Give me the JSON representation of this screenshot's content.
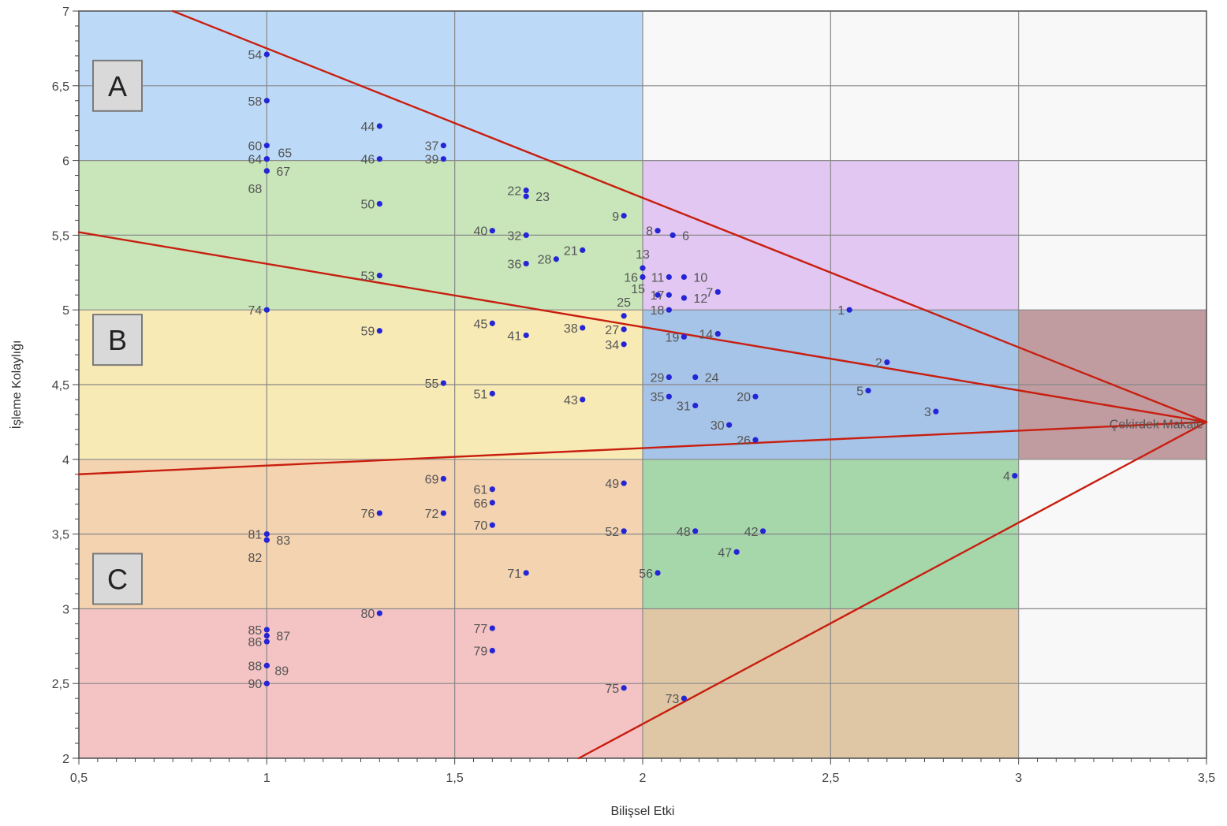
{
  "chart_data": {
    "type": "scatter",
    "xlabel": "Bilişsel Etki",
    "ylabel": "İşleme Kolaylığı",
    "xlim": [
      0.5,
      3.5
    ],
    "ylim": [
      2,
      7
    ],
    "x_ticks": [
      0.5,
      1,
      1.5,
      2,
      2.5,
      3,
      3.5
    ],
    "x_tick_labels": [
      "0,5",
      "1",
      "1,5",
      "2",
      "2,5",
      "3",
      "3,5"
    ],
    "y_ticks": [
      2,
      2.5,
      3,
      3.5,
      4,
      4.5,
      5,
      5.5,
      6,
      6.5,
      7
    ],
    "y_tick_labels": [
      "2",
      "2,5",
      "3",
      "3,5",
      "4",
      "4,5",
      "5",
      "5,5",
      "6",
      "6,5",
      "7"
    ],
    "grid": true,
    "regions": [
      {
        "x": [
          0.5,
          2
        ],
        "y": [
          6,
          7
        ],
        "color": "#bcdaf7"
      },
      {
        "x": [
          0.5,
          2
        ],
        "y": [
          5,
          6
        ],
        "color": "#c8e6b9"
      },
      {
        "x": [
          0.5,
          2
        ],
        "y": [
          4,
          5
        ],
        "color": "#f8eab5"
      },
      {
        "x": [
          0.5,
          2
        ],
        "y": [
          3,
          4
        ],
        "color": "#f4d3b0"
      },
      {
        "x": [
          0.5,
          2
        ],
        "y": [
          2,
          3
        ],
        "color": "#f4c3c4"
      },
      {
        "x": [
          2,
          3
        ],
        "y": [
          5,
          6
        ],
        "color": "#e1c7f1"
      },
      {
        "x": [
          2,
          3
        ],
        "y": [
          4,
          5
        ],
        "color": "#a6c3e8"
      },
      {
        "x": [
          2,
          3
        ],
        "y": [
          3,
          4
        ],
        "color": "#a6d7ab"
      },
      {
        "x": [
          2,
          3
        ],
        "y": [
          2,
          3
        ],
        "color": "#dfc7a5"
      },
      {
        "x": [
          3,
          3.5
        ],
        "y": [
          4,
          5
        ],
        "color": "#c09b9f"
      },
      {
        "x": [
          2,
          3.5
        ],
        "y": [
          6,
          7
        ],
        "color": "#f8f8f8"
      },
      {
        "x": [
          3,
          3.5
        ],
        "y": [
          5,
          6
        ],
        "color": "#f8f8f8"
      },
      {
        "x": [
          3,
          3.5
        ],
        "y": [
          2,
          4
        ],
        "color": "#f8f8f8"
      }
    ],
    "zone_labels": [
      {
        "text": "A",
        "y": 6.5
      },
      {
        "text": "B",
        "y": 4.8
      },
      {
        "text": "C",
        "y": 3.2
      }
    ],
    "core_label": "Çekirdek Makale",
    "lines": [
      {
        "from": [
          0.75,
          7
        ],
        "to": [
          3.5,
          4.25
        ]
      },
      {
        "from": [
          0.5,
          5.52
        ],
        "to": [
          3.5,
          4.25
        ]
      },
      {
        "from": [
          0.5,
          3.9
        ],
        "to": [
          3.5,
          4.25
        ]
      },
      {
        "from": [
          1.83,
          2
        ],
        "to": [
          3.5,
          4.25
        ]
      }
    ],
    "line_color": "#c81e0f",
    "point_color": "#2525d6",
    "points": [
      {
        "id": "1",
        "x": 2.55,
        "y": 5.0,
        "lp": "l"
      },
      {
        "id": "2",
        "x": 2.65,
        "y": 4.65,
        "lp": "l"
      },
      {
        "id": "3",
        "x": 2.78,
        "y": 4.32,
        "lp": "l"
      },
      {
        "id": "4",
        "x": 2.99,
        "y": 3.89,
        "lp": "l"
      },
      {
        "id": "5",
        "x": 2.6,
        "y": 4.46,
        "lp": "l"
      },
      {
        "id": "6",
        "x": 2.08,
        "y": 5.5,
        "lp": "r"
      },
      {
        "id": "7",
        "x": 2.2,
        "y": 5.12,
        "lp": "l"
      },
      {
        "id": "8",
        "x": 2.04,
        "y": 5.53,
        "lp": "l"
      },
      {
        "id": "9",
        "x": 1.95,
        "y": 5.63,
        "lp": "l"
      },
      {
        "id": "10",
        "x": 2.11,
        "y": 5.22,
        "lp": "r"
      },
      {
        "id": "11",
        "x": 2.07,
        "y": 5.22,
        "lp": "l"
      },
      {
        "id": "12",
        "x": 2.11,
        "y": 5.08,
        "lp": "r"
      },
      {
        "id": "13",
        "x": 2.0,
        "y": 5.28,
        "lp": "a"
      },
      {
        "id": "14",
        "x": 2.2,
        "y": 4.84,
        "lp": "l"
      },
      {
        "id": "15",
        "x": 2.04,
        "y": 5.1,
        "lp": "m"
      },
      {
        "id": "16",
        "x": 2.0,
        "y": 5.22,
        "lp": "l"
      },
      {
        "id": "17",
        "x": 2.07,
        "y": 5.1,
        "lp": "l"
      },
      {
        "id": "18",
        "x": 2.07,
        "y": 5.0,
        "lp": "l"
      },
      {
        "id": "19",
        "x": 2.11,
        "y": 4.82,
        "lp": "l"
      },
      {
        "id": "20",
        "x": 2.3,
        "y": 4.42,
        "lp": "l"
      },
      {
        "id": "21",
        "x": 1.84,
        "y": 5.4,
        "lp": "l"
      },
      {
        "id": "22",
        "x": 1.69,
        "y": 5.8,
        "lp": "l"
      },
      {
        "id": "23",
        "x": 1.69,
        "y": 5.76,
        "lp": "r"
      },
      {
        "id": "24",
        "x": 2.14,
        "y": 4.55,
        "lp": "r"
      },
      {
        "id": "25",
        "x": 1.95,
        "y": 4.96,
        "lp": "a"
      },
      {
        "id": "26",
        "x": 2.3,
        "y": 4.13,
        "lp": "l"
      },
      {
        "id": "27",
        "x": 1.95,
        "y": 4.87,
        "lp": "l"
      },
      {
        "id": "28",
        "x": 1.77,
        "y": 5.34,
        "lp": "l"
      },
      {
        "id": "29",
        "x": 2.07,
        "y": 4.55,
        "lp": "l"
      },
      {
        "id": "30",
        "x": 2.23,
        "y": 4.23,
        "lp": "l"
      },
      {
        "id": "31",
        "x": 2.14,
        "y": 4.36,
        "lp": "l"
      },
      {
        "id": "32",
        "x": 1.69,
        "y": 5.5,
        "lp": "l"
      },
      {
        "id": "34",
        "x": 1.95,
        "y": 4.77,
        "lp": "l"
      },
      {
        "id": "35",
        "x": 2.07,
        "y": 4.42,
        "lp": "l"
      },
      {
        "id": "36",
        "x": 1.69,
        "y": 5.31,
        "lp": "l"
      },
      {
        "id": "37",
        "x": 1.47,
        "y": 6.1,
        "lp": "l"
      },
      {
        "id": "38",
        "x": 1.84,
        "y": 4.88,
        "lp": "l"
      },
      {
        "id": "39",
        "x": 1.47,
        "y": 6.01,
        "lp": "l"
      },
      {
        "id": "40",
        "x": 1.6,
        "y": 5.53,
        "lp": "l"
      },
      {
        "id": "41",
        "x": 1.69,
        "y": 4.83,
        "lp": "l"
      },
      {
        "id": "42",
        "x": 2.32,
        "y": 3.52,
        "lp": "l"
      },
      {
        "id": "43",
        "x": 1.84,
        "y": 4.4,
        "lp": "l"
      },
      {
        "id": "44",
        "x": 1.3,
        "y": 6.23,
        "lp": "l"
      },
      {
        "id": "45",
        "x": 1.6,
        "y": 4.91,
        "lp": "l"
      },
      {
        "id": "46",
        "x": 1.3,
        "y": 6.01,
        "lp": "l"
      },
      {
        "id": "47",
        "x": 2.25,
        "y": 3.38,
        "lp": "l"
      },
      {
        "id": "48",
        "x": 2.14,
        "y": 3.52,
        "lp": "l"
      },
      {
        "id": "49",
        "x": 1.95,
        "y": 3.84,
        "lp": "l"
      },
      {
        "id": "50",
        "x": 1.3,
        "y": 5.71,
        "lp": "l"
      },
      {
        "id": "51",
        "x": 1.6,
        "y": 4.44,
        "lp": "l"
      },
      {
        "id": "52",
        "x": 1.95,
        "y": 3.52,
        "lp": "l"
      },
      {
        "id": "53",
        "x": 1.3,
        "y": 5.23,
        "lp": "l"
      },
      {
        "id": "54",
        "x": 1.0,
        "y": 6.71,
        "lp": "l"
      },
      {
        "id": "55",
        "x": 1.47,
        "y": 4.51,
        "lp": "l"
      },
      {
        "id": "56",
        "x": 2.04,
        "y": 3.24,
        "lp": "l"
      },
      {
        "id": "58",
        "x": 1.0,
        "y": 6.4,
        "lp": "l"
      },
      {
        "id": "59",
        "x": 1.3,
        "y": 4.86,
        "lp": "l"
      },
      {
        "id": "60",
        "x": 1.0,
        "y": 6.1,
        "lp": "l"
      },
      {
        "id": "61",
        "x": 1.6,
        "y": 3.8,
        "lp": "l"
      },
      {
        "id": "64",
        "x": 1.0,
        "y": 6.01,
        "lp": "l"
      },
      {
        "id": "65",
        "x": 1.0,
        "y": 6.01,
        "lp": "ar"
      },
      {
        "id": "66",
        "x": 1.6,
        "y": 3.71,
        "lp": "l"
      },
      {
        "id": "67",
        "x": 1.0,
        "y": 5.93,
        "lp": "r"
      },
      {
        "id": "68",
        "x": 1.0,
        "y": 5.93,
        "lp": "bl"
      },
      {
        "id": "69",
        "x": 1.47,
        "y": 3.87,
        "lp": "l"
      },
      {
        "id": "70",
        "x": 1.6,
        "y": 3.56,
        "lp": "l"
      },
      {
        "id": "71",
        "x": 1.69,
        "y": 3.24,
        "lp": "l"
      },
      {
        "id": "72",
        "x": 1.47,
        "y": 3.64,
        "lp": "l"
      },
      {
        "id": "73",
        "x": 2.11,
        "y": 2.4,
        "lp": "l"
      },
      {
        "id": "74",
        "x": 1.0,
        "y": 5.0,
        "lp": "l"
      },
      {
        "id": "75",
        "x": 1.95,
        "y": 2.47,
        "lp": "l"
      },
      {
        "id": "76",
        "x": 1.3,
        "y": 3.64,
        "lp": "l"
      },
      {
        "id": "77",
        "x": 1.6,
        "y": 2.87,
        "lp": "l"
      },
      {
        "id": "79",
        "x": 1.6,
        "y": 2.72,
        "lp": "l"
      },
      {
        "id": "80",
        "x": 1.3,
        "y": 2.97,
        "lp": "l"
      },
      {
        "id": "81",
        "x": 1.0,
        "y": 3.5,
        "lp": "l"
      },
      {
        "id": "82",
        "x": 1.0,
        "y": 3.46,
        "lp": "bl"
      },
      {
        "id": "83",
        "x": 1.0,
        "y": 3.46,
        "lp": "r"
      },
      {
        "id": "85",
        "x": 1.0,
        "y": 2.86,
        "lp": "l"
      },
      {
        "id": "86",
        "x": 1.0,
        "y": 2.78,
        "lp": "l"
      },
      {
        "id": "87",
        "x": 1.0,
        "y": 2.82,
        "lp": "r"
      },
      {
        "id": "88",
        "x": 1.0,
        "y": 2.62,
        "lp": "l"
      },
      {
        "id": "89",
        "x": 1.0,
        "y": 2.62,
        "lp": "br"
      },
      {
        "id": "90",
        "x": 1.0,
        "y": 2.5,
        "lp": "l"
      }
    ]
  }
}
